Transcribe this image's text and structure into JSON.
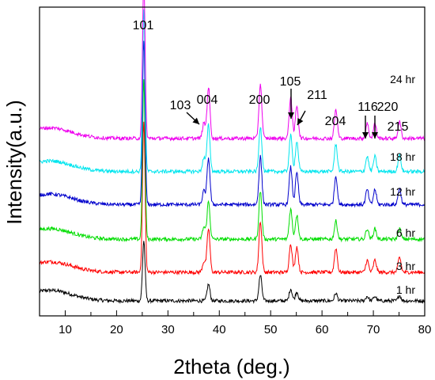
{
  "chart_data": {
    "type": "line",
    "title": "",
    "xlabel": "2theta (deg.)",
    "ylabel": "Intensity(a.u.)",
    "xlim": [
      5,
      80
    ],
    "xticks": [
      10,
      20,
      30,
      40,
      50,
      60,
      70,
      80
    ],
    "y_ticks_shown": false,
    "grid": false,
    "legend": "labels placed at right end of each trace",
    "peaks": [
      {
        "label": "101",
        "x": 25.3
      },
      {
        "label": "103",
        "x": 37.0
      },
      {
        "label": "004",
        "x": 37.9
      },
      {
        "label": "200",
        "x": 48.0
      },
      {
        "label": "105",
        "x": 53.9
      },
      {
        "label": "211",
        "x": 55.1
      },
      {
        "label": "204",
        "x": 62.7
      },
      {
        "label": "116",
        "x": 68.8
      },
      {
        "label": "220",
        "x": 70.3
      },
      {
        "label": "215",
        "x": 75.1
      }
    ],
    "arrowed_peaks": [
      "103",
      "105",
      "211",
      "116",
      "220"
    ],
    "series": [
      {
        "name": "1 hr",
        "color": "#000000",
        "baseline": 0.0,
        "peak_heights": {
          "25.3": 2.0,
          "37.9": 0.55,
          "48.0": 0.85,
          "53.9": 0.4,
          "55.1": 0.3,
          "62.7": 0.25,
          "68.8": 0.15,
          "70.3": 0.15,
          "75.1": 0.18
        }
      },
      {
        "name": "3 hr",
        "color": "#ff0000",
        "baseline": 0.95,
        "peak_heights": {
          "25.3": 5.0,
          "37.0": 0.35,
          "37.9": 1.45,
          "48.0": 1.7,
          "53.9": 0.95,
          "55.1": 0.85,
          "62.7": 0.8,
          "68.8": 0.4,
          "70.3": 0.4,
          "75.1": 0.5
        }
      },
      {
        "name": "6 hr",
        "color": "#00dd00",
        "baseline": 2.05,
        "peak_heights": {
          "25.3": 5.3,
          "37.0": 0.4,
          "37.9": 1.25,
          "48.0": 1.6,
          "53.9": 1.0,
          "55.1": 0.8,
          "62.7": 0.6,
          "68.8": 0.35,
          "70.3": 0.35,
          "75.1": 0.35
        }
      },
      {
        "name": "12 hr",
        "color": "#0000cc",
        "baseline": 3.2,
        "peak_heights": {
          "25.3": 5.5,
          "37.0": 0.45,
          "37.9": 1.55,
          "48.0": 1.6,
          "53.9": 1.25,
          "55.1": 1.05,
          "62.7": 0.95,
          "68.8": 0.5,
          "70.3": 0.5,
          "75.1": 0.55
        }
      },
      {
        "name": "18 hr",
        "color": "#00e5ee",
        "baseline": 4.3,
        "peak_heights": {
          "25.3": 5.4,
          "37.0": 0.45,
          "37.9": 1.55,
          "48.0": 1.5,
          "53.9": 1.2,
          "55.1": 1.0,
          "62.7": 0.9,
          "68.8": 0.5,
          "70.3": 0.5,
          "75.1": 0.55
        }
      },
      {
        "name": "24 hr",
        "color": "#ee00ee",
        "baseline": 5.4,
        "peak_heights": {
          "25.3": 5.3,
          "37.0": 0.5,
          "37.9": 1.7,
          "48.0": 1.8,
          "53.9": 1.4,
          "55.1": 1.1,
          "62.7": 0.95,
          "68.8": 0.5,
          "70.3": 0.5,
          "75.1": 0.55
        }
      }
    ]
  }
}
